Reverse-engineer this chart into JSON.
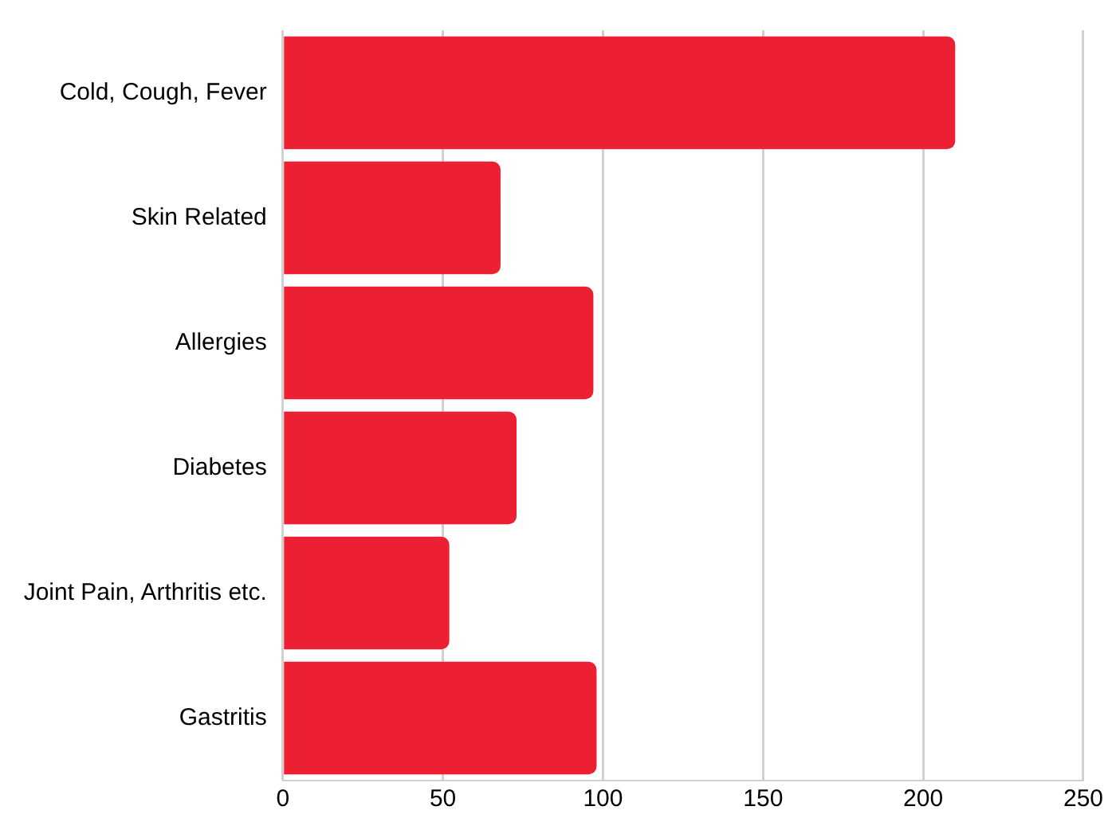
{
  "chart_data": {
    "type": "bar",
    "orientation": "horizontal",
    "categories": [
      "Cold, Cough, Fever",
      "Skin Related",
      "Allergies",
      "Diabetes",
      "Joint Pain, Arthritis etc.",
      "Gastritis"
    ],
    "values": [
      210,
      68,
      97,
      73,
      52,
      98
    ],
    "color": "#ec1f33",
    "xlim": [
      0,
      250
    ],
    "xticks": [
      0,
      50,
      100,
      150,
      200,
      250
    ],
    "grid": "x"
  }
}
